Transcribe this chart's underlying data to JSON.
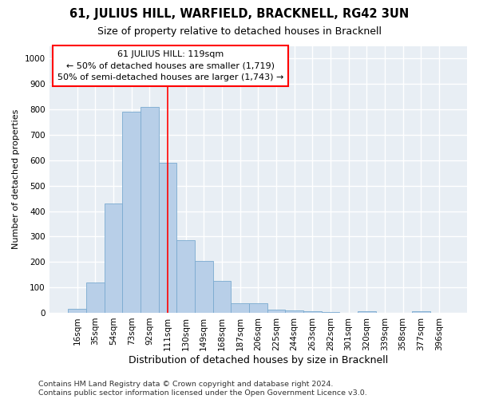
{
  "title": "61, JULIUS HILL, WARFIELD, BRACKNELL, RG42 3UN",
  "subtitle": "Size of property relative to detached houses in Bracknell",
  "xlabel": "Distribution of detached houses by size in Bracknell",
  "ylabel": "Number of detached properties",
  "categories": [
    "16sqm",
    "35sqm",
    "54sqm",
    "73sqm",
    "92sqm",
    "111sqm",
    "130sqm",
    "149sqm",
    "168sqm",
    "187sqm",
    "206sqm",
    "225sqm",
    "244sqm",
    "263sqm",
    "282sqm",
    "301sqm",
    "320sqm",
    "339sqm",
    "358sqm",
    "377sqm",
    "396sqm"
  ],
  "values": [
    15,
    120,
    430,
    790,
    810,
    590,
    285,
    205,
    125,
    38,
    38,
    12,
    8,
    5,
    3,
    0,
    5,
    0,
    0,
    5,
    0
  ],
  "bar_color": "#b8cfe8",
  "bar_edge_color": "#7aaad0",
  "background_color": "#e8eef4",
  "grid_color": "#ffffff",
  "property_label": "61 JULIUS HILL: 119sqm",
  "annotation_line1": "← 50% of detached houses are smaller (1,719)",
  "annotation_line2": "50% of semi-detached houses are larger (1,743) →",
  "red_line_x": 5.0,
  "ylim": [
    0,
    1050
  ],
  "footnote1": "Contains HM Land Registry data © Crown copyright and database right 2024.",
  "footnote2": "Contains public sector information licensed under the Open Government Licence v3.0.",
  "title_fontsize": 10.5,
  "subtitle_fontsize": 9,
  "xlabel_fontsize": 9,
  "ylabel_fontsize": 8,
  "tick_fontsize": 7.5,
  "annotation_fontsize": 8,
  "footnote_fontsize": 6.8
}
